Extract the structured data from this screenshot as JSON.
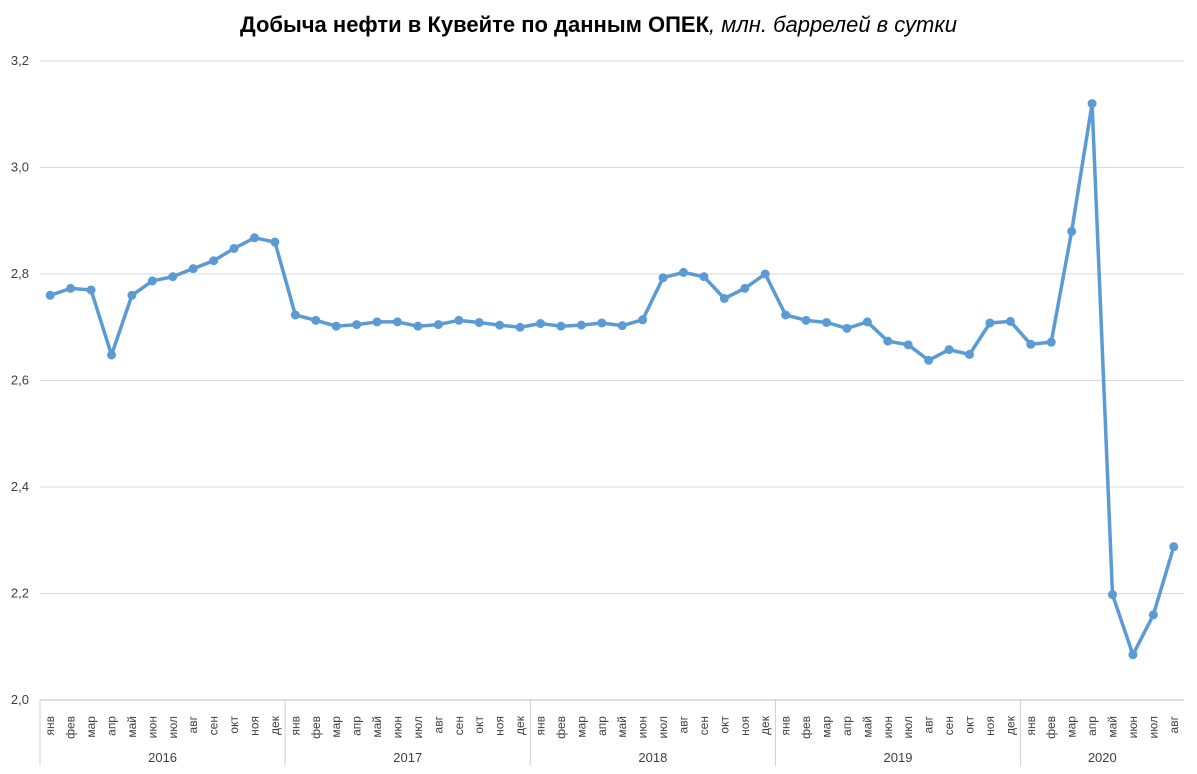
{
  "chart_data": {
    "type": "line",
    "title": "Добыча нефти в Кувейте по данным ОПЕК",
    "subtitle": ", млн. баррелей в сутки",
    "xlabel": "",
    "ylabel": "",
    "ylim": [
      2.0,
      3.2
    ],
    "yticks": [
      "2,0",
      "2,2",
      "2,4",
      "2,6",
      "2,8",
      "3,0",
      "3,2"
    ],
    "grid": true,
    "line_color": "#5B9BD5",
    "grid_color": "#d9d9d9",
    "years": [
      {
        "label": "2016",
        "months": 12
      },
      {
        "label": "2017",
        "months": 12
      },
      {
        "label": "2018",
        "months": 12
      },
      {
        "label": "2019",
        "months": 12
      },
      {
        "label": "2020",
        "months": 8
      }
    ],
    "month_labels": [
      "янв",
      "фев",
      "мар",
      "апр",
      "май",
      "июн",
      "июл",
      "авг",
      "сен",
      "окт",
      "ноя",
      "дек"
    ],
    "series": [
      {
        "values": [
          2.76,
          2.773,
          2.77,
          2.648,
          2.76,
          2.787,
          2.795,
          2.81,
          2.825,
          2.848,
          2.868,
          2.86,
          2.723,
          2.713,
          2.702,
          2.705,
          2.71,
          2.71,
          2.702,
          2.705,
          2.713,
          2.709,
          2.704,
          2.7,
          2.707,
          2.702,
          2.704,
          2.708,
          2.703,
          2.714,
          2.793,
          2.803,
          2.795,
          2.754,
          2.773,
          2.8,
          2.723,
          2.713,
          2.709,
          2.698,
          2.71,
          2.674,
          2.667,
          2.638,
          2.658,
          2.649,
          2.708,
          2.711,
          2.668,
          2.672,
          2.88,
          3.12,
          2.198,
          2.085,
          2.16,
          2.288
        ]
      }
    ]
  }
}
